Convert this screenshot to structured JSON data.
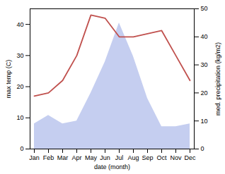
{
  "chart_data": {
    "type": "line",
    "categories": [
      "Jan",
      "Feb",
      "Mar",
      "Apr",
      "May",
      "Jun",
      "Jul",
      "Aug",
      "Sep",
      "Oct",
      "Nov",
      "Dec"
    ],
    "xlabel": "date (month)",
    "ylabel": "max temp (C)",
    "y2label": "med. precipitation (kg/m2)",
    "series": [
      {
        "type": "area",
        "axis": "y2",
        "color": "#c5cef0",
        "values": [
          9,
          12,
          9,
          10,
          20,
          31,
          45,
          33,
          18,
          8,
          8,
          9
        ]
      },
      {
        "type": "line",
        "color": "#c0504d",
        "values": [
          17,
          18,
          22,
          30,
          43,
          42,
          36,
          36,
          37,
          38,
          30,
          22
        ]
      }
    ],
    "ylim": [
      0,
      45
    ],
    "yticks": [
      0,
      10,
      20,
      30,
      40
    ],
    "y2lim": [
      0,
      50
    ],
    "y2ticks": [
      0,
      10,
      20,
      30,
      40,
      50
    ]
  }
}
